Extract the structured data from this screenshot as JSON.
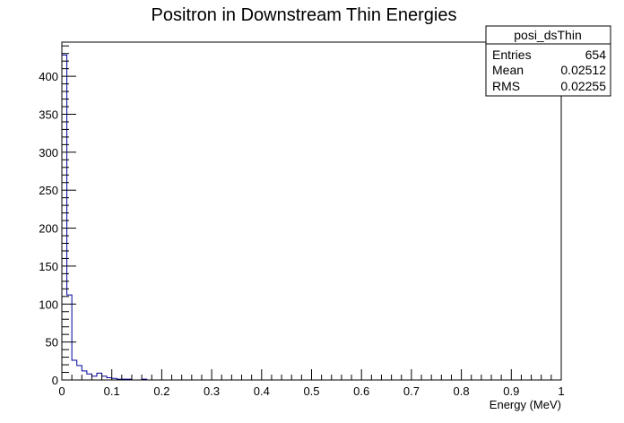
{
  "chart_data": {
    "type": "bar",
    "title": "Positron in Downstream Thin Energies",
    "xlabel": "Energy (MeV)",
    "ylabel": "",
    "xlim": [
      0,
      1
    ],
    "ylim": [
      0,
      445
    ],
    "bin_width": 0.01,
    "grid": false,
    "x_ticks": [
      {
        "value": 0,
        "label": "0"
      },
      {
        "value": 0.1,
        "label": "0.1"
      },
      {
        "value": 0.2,
        "label": "0.2"
      },
      {
        "value": 0.3,
        "label": "0.3"
      },
      {
        "value": 0.4,
        "label": "0.4"
      },
      {
        "value": 0.5,
        "label": "0.5"
      },
      {
        "value": 0.6,
        "label": "0.6"
      },
      {
        "value": 0.7,
        "label": "0.7"
      },
      {
        "value": 0.8,
        "label": "0.8"
      },
      {
        "value": 0.9,
        "label": "0.9"
      },
      {
        "value": 1,
        "label": "1"
      }
    ],
    "y_ticks": [
      {
        "value": 0,
        "label": "0"
      },
      {
        "value": 50,
        "label": "50"
      },
      {
        "value": 100,
        "label": "100"
      },
      {
        "value": 150,
        "label": "150"
      },
      {
        "value": 200,
        "label": "200"
      },
      {
        "value": 250,
        "label": "250"
      },
      {
        "value": 300,
        "label": "300"
      },
      {
        "value": 350,
        "label": "350"
      },
      {
        "value": 400,
        "label": "400"
      }
    ],
    "series": [
      {
        "values": [
          428,
          112,
          26,
          19,
          12,
          8,
          5,
          9,
          5,
          3,
          2,
          1,
          1,
          1,
          0,
          0,
          1,
          0,
          0,
          0
        ]
      }
    ],
    "stats_box": {
      "name": "posi_dsThin",
      "rows": [
        {
          "label": "Entries",
          "value": "654"
        },
        {
          "label": "Mean",
          "value": "0.02512"
        },
        {
          "label": "RMS",
          "value": "0.02255"
        }
      ]
    },
    "colors": {
      "line": "#000099",
      "frame": "#000000",
      "background": "#ffffff"
    }
  }
}
